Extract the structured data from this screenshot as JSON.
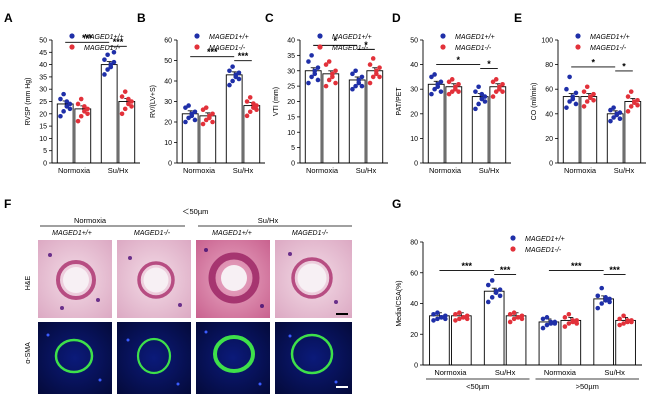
{
  "colors": {
    "wt": "#1f2fa8",
    "ko": "#e2313a",
    "bar_fill": "#ffffff",
    "axis": "#000000"
  },
  "legend": {
    "wt": "MAGED1+/+",
    "ko": "MAGED1-/-"
  },
  "chart_data": [
    {
      "type": "bar",
      "panel": "A",
      "ylabel": "RVSP (mm Hg)",
      "ylim": [
        0,
        50
      ],
      "yticks": [
        0,
        5,
        10,
        15,
        20,
        25,
        30,
        35,
        40,
        45,
        50
      ],
      "categories": [
        "Normoxia",
        "Su/Hx"
      ],
      "series": [
        {
          "name": "MAGED1+/+",
          "values": [
            24,
            40
          ]
        },
        {
          "name": "MAGED1-/-",
          "values": [
            22,
            25
          ]
        }
      ],
      "points": [
        [
          [
            19,
            21,
            23,
            24,
            26,
            28,
            25,
            22
          ],
          [
            36,
            38,
            40,
            41,
            42,
            44,
            39,
            45
          ]
        ],
        [
          [
            17,
            19,
            21,
            22,
            24,
            26,
            23,
            20
          ],
          [
            20,
            22,
            24,
            25,
            27,
            29,
            26,
            23
          ]
        ]
      ],
      "significance": [
        {
          "from": [
            0,
            0
          ],
          "to": [
            1,
            0
          ],
          "label": "***"
        },
        {
          "from": [
            1,
            0
          ],
          "to": [
            1,
            1
          ],
          "label": "***"
        }
      ]
    },
    {
      "type": "bar",
      "panel": "B",
      "ylabel": "RV/(LV+S)",
      "ylim": [
        0,
        60
      ],
      "yticks": [
        0,
        10,
        20,
        30,
        40,
        50,
        60
      ],
      "categories": [
        "Normoxia",
        "Su/Hx"
      ],
      "series": [
        {
          "name": "MAGED1+/+",
          "values": [
            24,
            43
          ]
        },
        {
          "name": "MAGED1-/-",
          "values": [
            23,
            28
          ]
        }
      ],
      "points": [
        [
          [
            20,
            22,
            24,
            25,
            27,
            28,
            23,
            21
          ],
          [
            38,
            40,
            42,
            44,
            45,
            47,
            43,
            41
          ]
        ],
        [
          [
            19,
            21,
            23,
            24,
            26,
            27,
            22,
            20
          ],
          [
            23,
            25,
            27,
            28,
            30,
            32,
            29,
            26
          ]
        ]
      ],
      "significance": [
        {
          "from": [
            0,
            0
          ],
          "to": [
            1,
            0
          ],
          "label": "***"
        },
        {
          "from": [
            1,
            0
          ],
          "to": [
            1,
            1
          ],
          "label": "***"
        }
      ]
    },
    {
      "type": "bar",
      "panel": "C",
      "ylabel": "VTI (mm)",
      "ylim": [
        0,
        40
      ],
      "yticks": [
        0,
        5,
        10,
        15,
        20,
        25,
        30,
        35,
        40
      ],
      "categories": [
        "Normoxia",
        "Su/Hx"
      ],
      "series": [
        {
          "name": "MAGED1+/+",
          "values": [
            30,
            27
          ]
        },
        {
          "name": "MAGED1-/-",
          "values": [
            29,
            30
          ]
        }
      ],
      "points": [
        [
          [
            26,
            28,
            30,
            31,
            33,
            35,
            29,
            27
          ],
          [
            24,
            25,
            27,
            28,
            29,
            30,
            26,
            25
          ]
        ],
        [
          [
            25,
            27,
            29,
            30,
            32,
            33,
            28,
            26
          ],
          [
            26,
            28,
            30,
            31,
            32,
            34,
            29,
            28
          ]
        ]
      ],
      "significance": [
        {
          "from": [
            0,
            0
          ],
          "to": [
            1,
            0
          ],
          "label": "*"
        },
        {
          "from": [
            1,
            0
          ],
          "to": [
            1,
            1
          ],
          "label": "*"
        }
      ]
    },
    {
      "type": "bar",
      "panel": "D",
      "ylabel": "PAT/PET",
      "ylim": [
        0,
        50
      ],
      "yticks": [
        0,
        10,
        20,
        30,
        40,
        50
      ],
      "categories": [
        "Normoxia",
        "Su/Hx"
      ],
      "series": [
        {
          "name": "MAGED1+/+",
          "values": [
            32,
            27
          ]
        },
        {
          "name": "MAGED1-/-",
          "values": [
            31,
            31
          ]
        }
      ],
      "points": [
        [
          [
            28,
            30,
            32,
            33,
            35,
            36,
            31,
            29
          ],
          [
            22,
            24,
            26,
            27,
            29,
            31,
            28,
            25
          ]
        ],
        [
          [
            28,
            29,
            31,
            32,
            33,
            34,
            30,
            29
          ],
          [
            27,
            29,
            31,
            32,
            33,
            34,
            30,
            29
          ]
        ]
      ],
      "significance": [
        {
          "from": [
            0,
            0
          ],
          "to": [
            1,
            0
          ],
          "label": "*"
        },
        {
          "from": [
            1,
            0
          ],
          "to": [
            1,
            1
          ],
          "label": "*"
        }
      ]
    },
    {
      "type": "bar",
      "panel": "E",
      "ylabel": "CO (ml/min)",
      "ylim": [
        0,
        100
      ],
      "yticks": [
        0,
        20,
        40,
        60,
        80,
        100
      ],
      "categories": [
        "Normoxia",
        "Su/Hx"
      ],
      "series": [
        {
          "name": "MAGED1+/+",
          "values": [
            54,
            40
          ]
        },
        {
          "name": "MAGED1-/-",
          "values": [
            54,
            50
          ]
        }
      ],
      "points": [
        [
          [
            45,
            50,
            54,
            57,
            60,
            70,
            52,
            48
          ],
          [
            34,
            37,
            39,
            41,
            43,
            45,
            40,
            36
          ]
        ],
        [
          [
            46,
            50,
            53,
            56,
            58,
            62,
            54,
            51
          ],
          [
            42,
            46,
            49,
            51,
            54,
            58,
            50,
            47
          ]
        ]
      ],
      "significance": [
        {
          "from": [
            0,
            0
          ],
          "to": [
            1,
            0
          ],
          "label": "*"
        },
        {
          "from": [
            1,
            0
          ],
          "to": [
            1,
            1
          ],
          "label": "*"
        }
      ]
    },
    {
      "type": "bar",
      "panel": "G",
      "ylabel": "Media/CSA(%)",
      "ylim": [
        0,
        80
      ],
      "yticks": [
        0,
        20,
        40,
        60,
        80
      ],
      "categories": [
        "Normoxia",
        "Su/Hx",
        "Normoxia",
        "Su/Hx"
      ],
      "groups": [
        "<50µm",
        ">50µm"
      ],
      "series": [
        {
          "name": "MAGED1+/+",
          "values": [
            32,
            48,
            28,
            43
          ]
        },
        {
          "name": "MAGED1-/-",
          "values": [
            32,
            32,
            29,
            29
          ]
        }
      ],
      "points": [
        [
          [
            29,
            30,
            31,
            32,
            33,
            34,
            31,
            30
          ],
          [
            41,
            44,
            47,
            49,
            52,
            55,
            48,
            45
          ],
          [
            24,
            26,
            27,
            28,
            30,
            31,
            28,
            27
          ],
          [
            37,
            40,
            42,
            43,
            45,
            50,
            44,
            41
          ]
        ],
        [
          [
            29,
            30,
            31,
            32,
            33,
            34,
            31,
            30
          ],
          [
            28,
            30,
            31,
            32,
            33,
            34,
            31,
            30
          ],
          [
            25,
            27,
            28,
            29,
            31,
            33,
            29,
            27
          ],
          [
            26,
            27,
            28,
            29,
            30,
            32,
            29,
            28
          ]
        ]
      ],
      "significance": [
        {
          "from": [
            0,
            0
          ],
          "to": [
            1,
            0
          ],
          "label": "***"
        },
        {
          "from": [
            1,
            0
          ],
          "to": [
            1,
            1
          ],
          "label": "***"
        },
        {
          "from": [
            2,
            0
          ],
          "to": [
            3,
            0
          ],
          "label": "***"
        },
        {
          "from": [
            3,
            0
          ],
          "to": [
            3,
            1
          ],
          "label": "***"
        }
      ]
    }
  ],
  "panel_f": {
    "letter": "F",
    "note": "＜50µm",
    "group_headers": [
      "Normoxia",
      "Su/Hx"
    ],
    "column_labels": [
      "MAGED1+/+",
      "MAGED1-/-",
      "MAGED1+/+",
      "MAGED1-/-"
    ],
    "row_labels": [
      "H&E",
      "α-SMA"
    ]
  }
}
